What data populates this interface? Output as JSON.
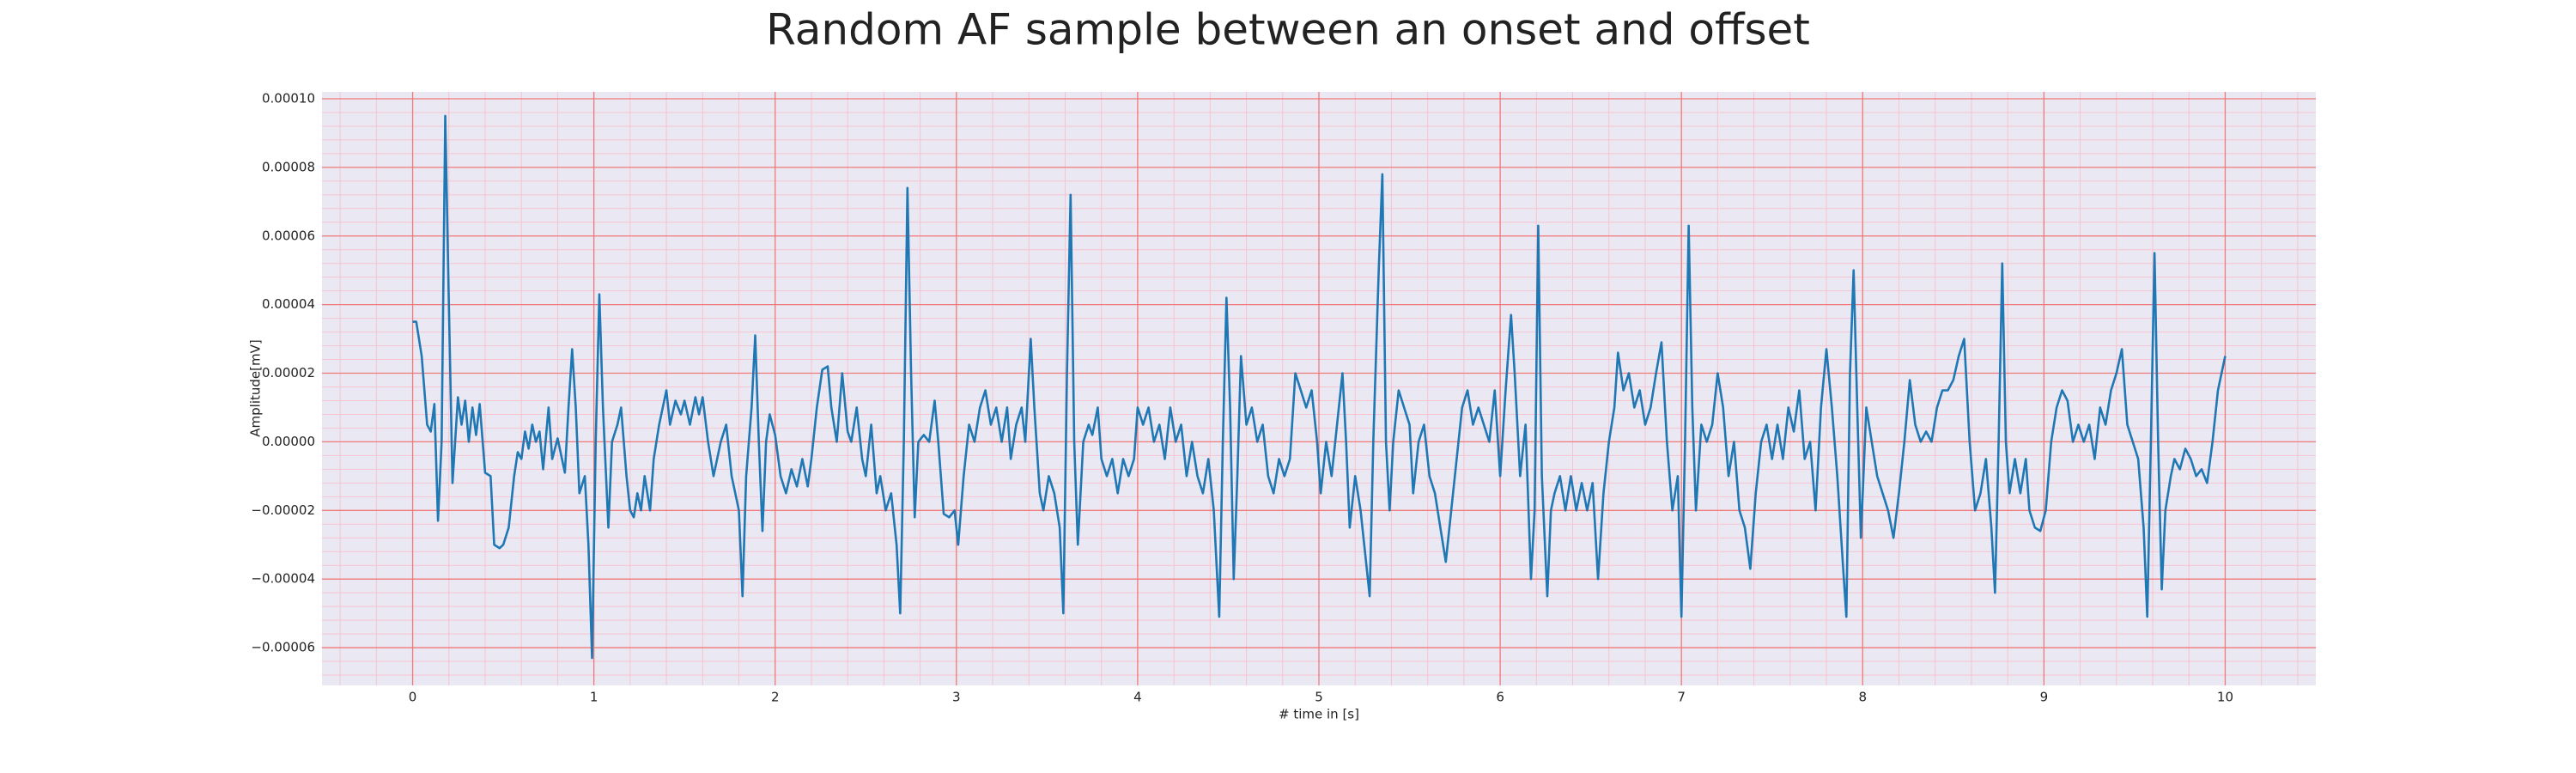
{
  "chart_data": {
    "type": "line",
    "title": "Random AF sample between an onset and offset",
    "xlabel": "# time in [s]",
    "ylabel": "Amplitude[mV]",
    "color": "#1f77b4",
    "background": "#eae9f3",
    "grid": true,
    "grid_color": "#f07a7a",
    "minor_grid": {
      "x_step": 0.2,
      "y_step": 4e-06,
      "color": "#f6c3cf"
    },
    "xlim": [
      -0.5,
      10.5
    ],
    "ylim": [
      -7.1e-05,
      0.000102
    ],
    "xticks": [
      0,
      1,
      2,
      3,
      4,
      5,
      6,
      7,
      8,
      9,
      10
    ],
    "yticks": [
      {
        "value": -6e-05,
        "label": "−0.00006"
      },
      {
        "value": -4e-05,
        "label": "−0.00004"
      },
      {
        "value": -2e-05,
        "label": "−0.00002"
      },
      {
        "value": 0,
        "label": "0.00000"
      },
      {
        "value": 2e-05,
        "label": "0.00002"
      },
      {
        "value": 4e-05,
        "label": "0.00004"
      },
      {
        "value": 6e-05,
        "label": "0.00006"
      },
      {
        "value": 8e-05,
        "label": "0.00008"
      },
      {
        "value": 0.0001,
        "label": "0.00010"
      }
    ],
    "x": [
      0,
      0.02,
      0.05,
      0.08,
      0.1,
      0.12,
      0.14,
      0.16,
      0.18,
      0.2,
      0.22,
      0.25,
      0.27,
      0.29,
      0.31,
      0.33,
      0.35,
      0.37,
      0.4,
      0.43,
      0.45,
      0.48,
      0.5,
      0.53,
      0.56,
      0.58,
      0.6,
      0.62,
      0.64,
      0.66,
      0.68,
      0.7,
      0.72,
      0.75,
      0.77,
      0.8,
      0.84,
      0.86,
      0.88,
      0.9,
      0.92,
      0.95,
      0.97,
      0.99,
      1.01,
      1.03,
      1.05,
      1.08,
      1.1,
      1.13,
      1.15,
      1.18,
      1.2,
      1.22,
      1.24,
      1.26,
      1.28,
      1.31,
      1.33,
      1.36,
      1.38,
      1.4,
      1.42,
      1.45,
      1.48,
      1.5,
      1.53,
      1.56,
      1.58,
      1.6,
      1.63,
      1.66,
      1.7,
      1.73,
      1.76,
      1.8,
      1.82,
      1.84,
      1.87,
      1.89,
      1.91,
      1.93,
      1.95,
      1.97,
      2.0,
      2.03,
      2.06,
      2.09,
      2.12,
      2.15,
      2.18,
      2.2,
      2.23,
      2.26,
      2.29,
      2.31,
      2.34,
      2.37,
      2.4,
      2.42,
      2.45,
      2.48,
      2.5,
      2.53,
      2.56,
      2.58,
      2.61,
      2.64,
      2.67,
      2.69,
      2.71,
      2.73,
      2.75,
      2.77,
      2.79,
      2.82,
      2.85,
      2.88,
      2.9,
      2.93,
      2.96,
      2.99,
      3.01,
      3.04,
      3.07,
      3.1,
      3.13,
      3.16,
      3.19,
      3.22,
      3.25,
      3.28,
      3.3,
      3.33,
      3.36,
      3.38,
      3.41,
      3.43,
      3.46,
      3.48,
      3.51,
      3.54,
      3.57,
      3.59,
      3.61,
      3.63,
      3.65,
      3.67,
      3.7,
      3.73,
      3.75,
      3.78,
      3.8,
      3.83,
      3.86,
      3.89,
      3.92,
      3.95,
      3.98,
      4.0,
      4.03,
      4.06,
      4.09,
      4.12,
      4.15,
      4.18,
      4.21,
      4.24,
      4.27,
      4.3,
      4.33,
      4.36,
      4.39,
      4.42,
      4.45,
      4.47,
      4.49,
      4.51,
      4.53,
      4.55,
      4.57,
      4.6,
      4.63,
      4.66,
      4.69,
      4.72,
      4.75,
      4.78,
      4.81,
      4.84,
      4.87,
      4.9,
      4.93,
      4.96,
      4.99,
      5.01,
      5.04,
      5.07,
      5.1,
      5.13,
      5.15,
      5.17,
      5.2,
      5.23,
      5.25,
      5.28,
      5.3,
      5.33,
      5.35,
      5.37,
      5.39,
      5.41,
      5.44,
      5.47,
      5.5,
      5.52,
      5.55,
      5.58,
      5.61,
      5.64,
      5.67,
      5.7,
      5.73,
      5.76,
      5.79,
      5.82,
      5.85,
      5.88,
      5.91,
      5.94,
      5.97,
      6.0,
      6.03,
      6.06,
      6.08,
      6.11,
      6.14,
      6.17,
      6.19,
      6.21,
      6.23,
      6.26,
      6.28,
      6.3,
      6.33,
      6.36,
      6.39,
      6.42,
      6.45,
      6.48,
      6.51,
      6.54,
      6.57,
      6.6,
      6.63,
      6.65,
      6.68,
      6.71,
      6.74,
      6.77,
      6.8,
      6.83,
      6.86,
      6.89,
      6.92,
      6.95,
      6.98,
      7.0,
      7.02,
      7.04,
      7.06,
      7.08,
      7.11,
      7.14,
      7.17,
      7.2,
      7.23,
      7.26,
      7.29,
      7.32,
      7.35,
      7.38,
      7.41,
      7.44,
      7.47,
      7.5,
      7.53,
      7.56,
      7.59,
      7.62,
      7.65,
      7.68,
      7.71,
      7.74,
      7.77,
      7.8,
      7.83,
      7.86,
      7.89,
      7.91,
      7.93,
      7.95,
      7.97,
      7.99,
      8.02,
      8.05,
      8.08,
      8.11,
      8.14,
      8.17,
      8.2,
      8.23,
      8.26,
      8.29,
      8.32,
      8.35,
      8.38,
      8.41,
      8.44,
      8.47,
      8.5,
      8.53,
      8.56,
      8.59,
      8.62,
      8.65,
      8.68,
      8.71,
      8.73,
      8.75,
      8.77,
      8.79,
      8.81,
      8.84,
      8.87,
      8.9,
      8.92,
      8.95,
      8.98,
      9.01,
      9.04,
      9.07,
      9.1,
      9.13,
      9.16,
      9.19,
      9.22,
      9.25,
      9.28,
      9.31,
      9.34,
      9.37,
      9.4,
      9.43,
      9.46,
      9.49,
      9.52,
      9.55,
      9.57,
      9.59,
      9.61,
      9.63,
      9.65,
      9.67,
      9.7,
      9.72,
      9.75,
      9.78,
      9.81,
      9.84,
      9.87,
      9.9,
      9.93,
      9.96,
      10.0
    ],
    "values": [
      3.5e-05,
      3.5e-05,
      2.5e-05,
      5e-06,
      3e-06,
      1.1e-05,
      -2.3e-05,
      0,
      9.5e-05,
      4e-05,
      -1.2e-05,
      1.3e-05,
      5e-06,
      1.2e-05,
      0,
      1e-05,
      2e-06,
      1.1e-05,
      -9e-06,
      -1e-05,
      -3e-05,
      -3.1e-05,
      -3e-05,
      -2.5e-05,
      -1e-05,
      -3e-06,
      -5e-06,
      3e-06,
      -2e-06,
      5e-06,
      0,
      3e-06,
      -8e-06,
      1e-05,
      -5e-06,
      1e-06,
      -9e-06,
      1e-05,
      2.7e-05,
      1e-05,
      -1.5e-05,
      -1e-05,
      -3e-05,
      -6.3e-05,
      0,
      4.3e-05,
      1e-05,
      -2.5e-05,
      0,
      5e-06,
      1e-05,
      -1e-05,
      -2e-05,
      -2.2e-05,
      -1.5e-05,
      -2e-05,
      -1e-05,
      -2e-05,
      -5e-06,
      5e-06,
      1e-05,
      1.5e-05,
      5e-06,
      1.2e-05,
      8e-06,
      1.2e-05,
      5e-06,
      1.3e-05,
      8e-06,
      1.3e-05,
      0,
      -1e-05,
      0,
      5e-06,
      -1e-05,
      -2e-05,
      -4.5e-05,
      -1e-05,
      1e-05,
      3.1e-05,
      0,
      -2.6e-05,
      0,
      8e-06,
      2e-06,
      -1e-05,
      -1.5e-05,
      -8e-06,
      -1.3e-05,
      -5e-06,
      -1.3e-05,
      -5e-06,
      1e-05,
      2.1e-05,
      2.2e-05,
      1e-05,
      0,
      2e-05,
      3e-06,
      0,
      1e-05,
      -5e-06,
      -1e-05,
      5e-06,
      -1.5e-05,
      -1e-05,
      -2e-05,
      -1.5e-05,
      -3e-05,
      -5e-05,
      0,
      7.4e-05,
      2e-05,
      -2.2e-05,
      0,
      2e-06,
      0,
      1.2e-05,
      0,
      -2.1e-05,
      -2.2e-05,
      -2e-05,
      -3e-05,
      -1e-05,
      5e-06,
      0,
      1e-05,
      1.5e-05,
      5e-06,
      1e-05,
      0,
      1e-05,
      -5e-06,
      5e-06,
      1e-05,
      0,
      3e-05,
      1e-05,
      -1.5e-05,
      -2e-05,
      -1e-05,
      -1.5e-05,
      -2.5e-05,
      -5e-05,
      2e-05,
      7.2e-05,
      0,
      -3e-05,
      0,
      5e-06,
      2e-06,
      1e-05,
      -5e-06,
      -1e-05,
      -5e-06,
      -1.5e-05,
      -5e-06,
      -1e-05,
      -5e-06,
      1e-05,
      5e-06,
      1e-05,
      0,
      5e-06,
      -5e-06,
      1e-05,
      0,
      5e-06,
      -1e-05,
      0,
      -1e-05,
      -1.5e-05,
      -5e-06,
      -2e-05,
      -5.1e-05,
      0,
      4.2e-05,
      1e-05,
      -4e-05,
      -1e-05,
      2.5e-05,
      5e-06,
      1e-05,
      0,
      5e-06,
      -1e-05,
      -1.5e-05,
      -5e-06,
      -1e-05,
      -5e-06,
      2e-05,
      1.5e-05,
      1e-05,
      1.5e-05,
      0,
      -1.5e-05,
      0,
      -1e-05,
      5e-06,
      2e-05,
      0,
      -2.5e-05,
      -1e-05,
      -2e-05,
      -3e-05,
      -4.5e-05,
      0,
      5e-05,
      7.8e-05,
      0,
      -2e-05,
      0,
      1.5e-05,
      1e-05,
      5e-06,
      -1.5e-05,
      0,
      5e-06,
      -1e-05,
      -1.5e-05,
      -2.5e-05,
      -3.5e-05,
      -2e-05,
      -5e-06,
      1e-05,
      1.5e-05,
      5e-06,
      1e-05,
      5e-06,
      0,
      1.5e-05,
      -1e-05,
      1.5e-05,
      3.7e-05,
      2e-05,
      -1e-05,
      5e-06,
      -4e-05,
      -2e-05,
      6.3e-05,
      -1e-05,
      -4.5e-05,
      -2e-05,
      -1.5e-05,
      -1e-05,
      -2e-05,
      -1e-05,
      -2e-05,
      -1.2e-05,
      -2e-05,
      -1.2e-05,
      -4e-05,
      -1.5e-05,
      0,
      1e-05,
      2.6e-05,
      1.5e-05,
      2e-05,
      1e-05,
      1.5e-05,
      5e-06,
      1e-05,
      2e-05,
      2.9e-05,
      0,
      -2e-05,
      -1e-05,
      -5.1e-05,
      0,
      6.3e-05,
      1e-05,
      -2e-05,
      5e-06,
      0,
      5e-06,
      2e-05,
      1e-05,
      -1e-05,
      0,
      -2e-05,
      -2.5e-05,
      -3.7e-05,
      -1.5e-05,
      0,
      5e-06,
      -5e-06,
      5e-06,
      -5e-06,
      1e-05,
      3e-06,
      1.5e-05,
      -5e-06,
      0,
      -2e-05,
      1e-05,
      2.7e-05,
      1e-05,
      -1e-05,
      -3.5e-05,
      -5.1e-05,
      2e-05,
      5e-05,
      1e-05,
      -2.8e-05,
      1e-05,
      0,
      -1e-05,
      -1.5e-05,
      -2e-05,
      -2.8e-05,
      -1.5e-05,
      0,
      1.8e-05,
      5e-06,
      0,
      3e-06,
      0,
      1e-05,
      1.5e-05,
      1.5e-05,
      1.8e-05,
      2.5e-05,
      3e-05,
      0,
      -2e-05,
      -1.5e-05,
      -5e-06,
      -2.5e-05,
      -4.4e-05,
      0,
      5.2e-05,
      0,
      -1.5e-05,
      -5e-06,
      -1.5e-05,
      -5e-06,
      -2e-05,
      -2.5e-05,
      -2.6e-05,
      -2e-05,
      0,
      1e-05,
      1.5e-05,
      1.2e-05,
      0,
      5e-06,
      0,
      5e-06,
      -5e-06,
      1e-05,
      5e-06,
      1.5e-05,
      2e-05,
      2.7e-05,
      5e-06,
      0,
      -5e-06,
      -2.5e-05,
      -5.1e-05,
      0,
      5.5e-05,
      0,
      -4.3e-05,
      -2e-05,
      -1e-05,
      -5e-06,
      -8e-06,
      -2e-06,
      -5e-06,
      -1e-05,
      -8e-06,
      -1.2e-05,
      0,
      1.5e-05,
      2.5e-05
    ]
  }
}
